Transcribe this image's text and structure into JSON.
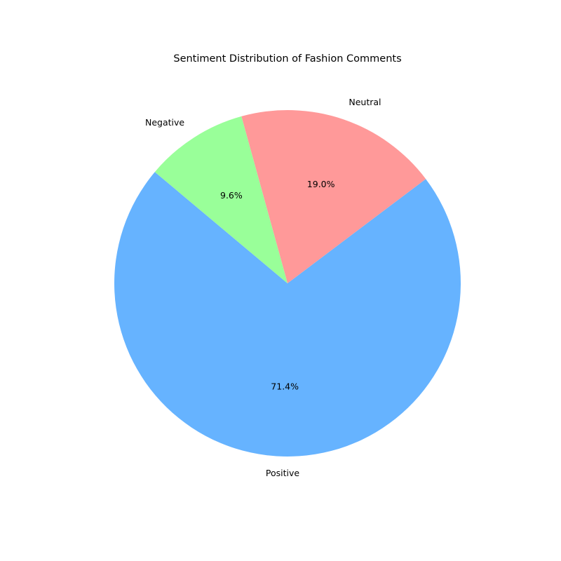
{
  "chart_data": {
    "type": "pie",
    "title": "Sentiment Distribution of Fashion Comments",
    "categories": [
      "Positive",
      "Neutral",
      "Negative"
    ],
    "values": [
      71.4,
      19.0,
      9.6
    ],
    "value_labels": [
      "71.4%",
      "19.0%",
      "9.6%"
    ],
    "colors": [
      "#66b3ff",
      "#ff9999",
      "#99ff99"
    ],
    "start_angle_deg": 140,
    "direction": "counterclockwise",
    "legend": "none"
  }
}
